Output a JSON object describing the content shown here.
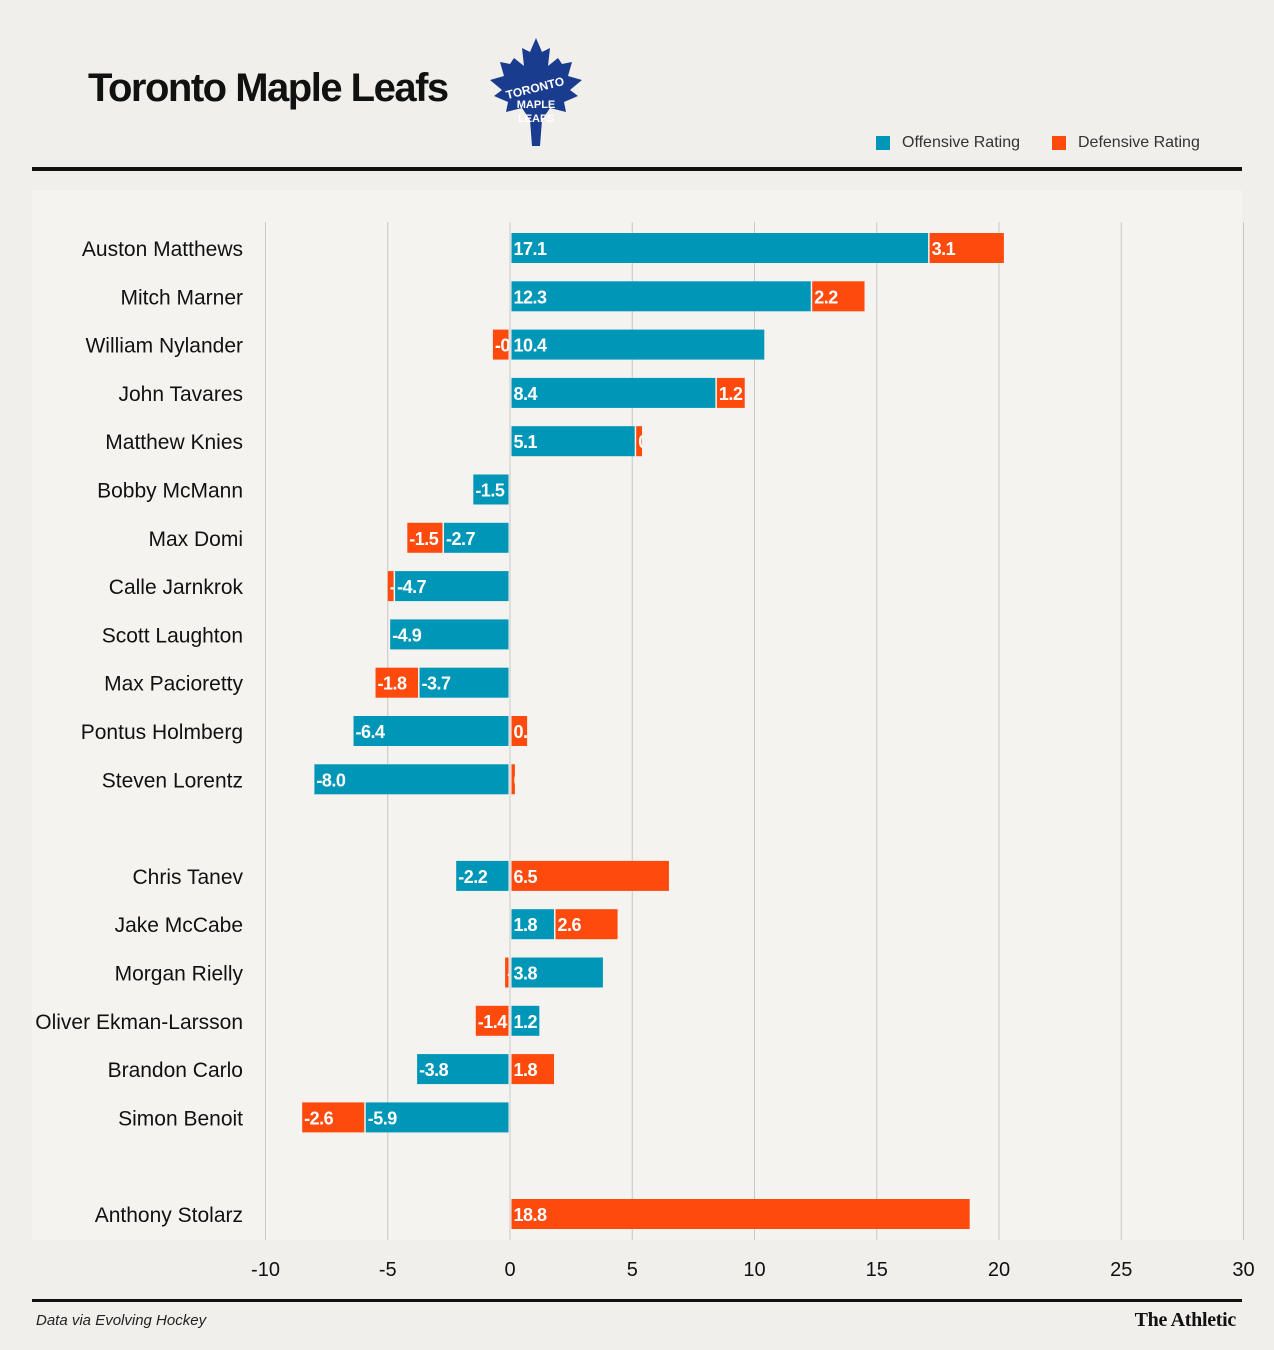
{
  "header": {
    "title": "Toronto Maple Leafs",
    "logo_text": [
      "TORONTO",
      "MAPLE",
      "LEAFS"
    ]
  },
  "legend": {
    "offensive": "Offensive Rating",
    "defensive": "Defensive Rating"
  },
  "footer": {
    "source": "Data via Evolving Hockey",
    "brand": "The Athletic"
  },
  "colors": {
    "offensive": "#0096b8",
    "defensive": "#ff4a0d",
    "logo": "#1a3c8f",
    "background": "#f0efeb",
    "plot_band": "#f4f3ef",
    "grid": "#c8c8c8"
  },
  "chart_data": {
    "type": "bar",
    "orientation": "horizontal",
    "stacked": true,
    "xlim": [
      -10,
      30
    ],
    "xticks": [
      "-10",
      "-5",
      "0",
      "5",
      "10",
      "15",
      "20",
      "25",
      "30"
    ],
    "grid": true,
    "legend_position": "top-right",
    "series": [
      {
        "name": "Offensive Rating"
      },
      {
        "name": "Defensive Rating"
      }
    ],
    "groups": [
      {
        "players": [
          {
            "name": "Auston Matthews",
            "offensive": 17.1,
            "defensive": 3.1
          },
          {
            "name": "Mitch Marner",
            "offensive": 12.3,
            "defensive": 2.2
          },
          {
            "name": "William Nylander",
            "offensive": 10.4,
            "defensive": -0.7
          },
          {
            "name": "John Tavares",
            "offensive": 8.4,
            "defensive": 1.2
          },
          {
            "name": "Matthew Knies",
            "offensive": 5.1,
            "defensive": 0.3
          },
          {
            "name": "Bobby McMann",
            "offensive": -1.5,
            "defensive": 0
          },
          {
            "name": "Max Domi",
            "offensive": -2.7,
            "defensive": -1.5
          },
          {
            "name": "Calle Jarnkrok",
            "offensive": -4.7,
            "defensive": -0.3
          },
          {
            "name": "Scott Laughton",
            "offensive": -4.9,
            "defensive": 0
          },
          {
            "name": "Max Pacioretty",
            "offensive": -3.7,
            "defensive": -1.8
          },
          {
            "name": "Pontus Holmberg",
            "offensive": -6.4,
            "defensive": 0.7
          },
          {
            "name": "Steven Lorentz",
            "offensive": -8.0,
            "defensive": 0.2
          }
        ]
      },
      {
        "players": [
          {
            "name": "Chris Tanev",
            "offensive": -2.2,
            "defensive": 6.5
          },
          {
            "name": "Jake McCabe",
            "offensive": 1.8,
            "defensive": 2.6
          },
          {
            "name": "Morgan Rielly",
            "offensive": 3.8,
            "defensive": -0.2
          },
          {
            "name": "Oliver Ekman-Larsson",
            "offensive": 1.2,
            "defensive": -1.4
          },
          {
            "name": "Brandon Carlo",
            "offensive": -3.8,
            "defensive": 1.8
          },
          {
            "name": "Simon Benoit",
            "offensive": -5.9,
            "defensive": -2.6
          }
        ]
      },
      {
        "players": [
          {
            "name": "Anthony Stolarz",
            "offensive": 0,
            "defensive": 18.8
          }
        ]
      }
    ]
  }
}
